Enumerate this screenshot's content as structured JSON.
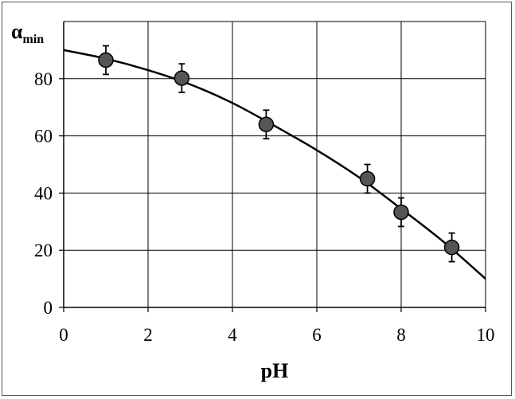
{
  "chart_data": {
    "type": "scatter",
    "title": "",
    "xlabel": "pH",
    "ylabel_main": "α",
    "ylabel_sub": "min",
    "xlim": [
      0,
      10
    ],
    "ylim": [
      0,
      100
    ],
    "x_ticks": [
      0,
      2,
      4,
      6,
      8,
      10
    ],
    "y_ticks": [
      0,
      20,
      40,
      60,
      80
    ],
    "grid": true,
    "legend": "none",
    "series": [
      {
        "x": [
          1.0,
          2.8,
          4.8,
          7.2,
          8.0,
          9.2
        ],
        "y": [
          86.5,
          80.2,
          64.0,
          45.0,
          33.3,
          21.0
        ],
        "error": [
          5,
          5,
          5,
          5,
          5,
          5
        ],
        "marker_color": "#555555"
      }
    ],
    "fit_curve": {
      "x": [
        0,
        1,
        2,
        3,
        4,
        5,
        6,
        7,
        8,
        9,
        10
      ],
      "y": [
        90.0,
        87.0,
        83.0,
        78.0,
        71.5,
        63.5,
        55.0,
        45.5,
        34.5,
        23.0,
        10.0
      ],
      "color": "#000000"
    }
  }
}
